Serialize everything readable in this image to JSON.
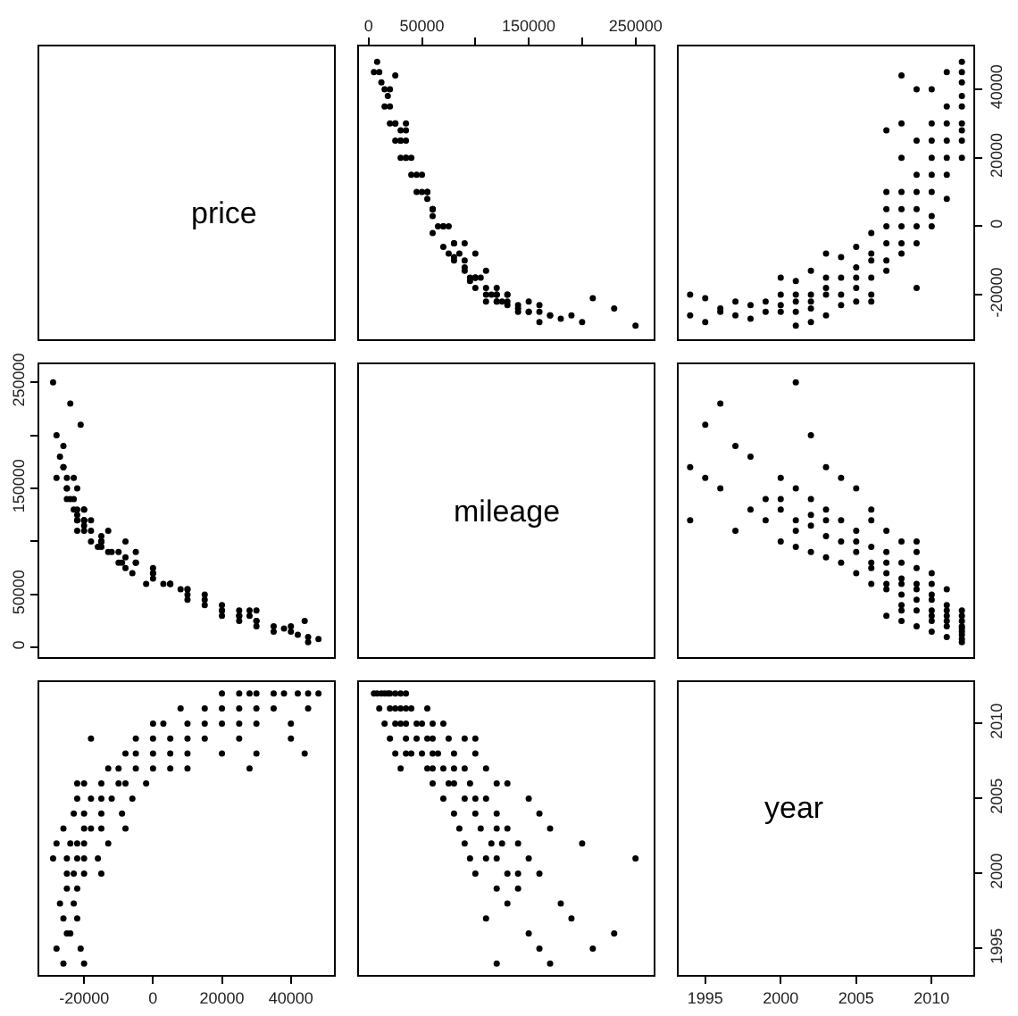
{
  "chart_data": [
    {
      "type": "other",
      "title": "price"
    },
    {
      "type": "scatter",
      "color": "#000000",
      "marker": "circle",
      "tick_labels": "x",
      "xlim": [
        -9000,
        267000
      ],
      "ylim": [
        -33000,
        52500
      ],
      "xticks": [
        0,
        50000,
        {
          "value": 100000,
          "label": null
        },
        150000,
        {
          "value": 200000,
          "label": null
        },
        250000
      ],
      "x": [
        8000,
        12000,
        15000,
        20000,
        25000,
        30000,
        5000,
        18000,
        35000,
        10000,
        20000,
        30000,
        40000,
        55000,
        35000,
        25000,
        15000,
        25000,
        35000,
        45000,
        60000,
        50000,
        30000,
        70000,
        20000,
        35000,
        45000,
        60000,
        75000,
        90000,
        55000,
        100000,
        25000,
        40000,
        50000,
        65000,
        80000,
        100000,
        60000,
        35000,
        30000,
        55000,
        70000,
        80000,
        90000,
        110000,
        60000,
        60000,
        80000,
        95000,
        120000,
        75000,
        130000,
        70000,
        90000,
        110000,
        150000,
        100000,
        80000,
        100000,
        120000,
        160000,
        85000,
        105000,
        130000,
        170000,
        120000,
        90000,
        115000,
        140000,
        200000,
        125000,
        95000,
        120000,
        150000,
        250000,
        110000,
        100000,
        130000,
        160000,
        140000,
        120000,
        140000,
        130000,
        180000,
        110000,
        190000,
        150000,
        230000,
        210000,
        160000,
        120000,
        170000
      ],
      "values": [
        48000,
        42000,
        35000,
        30000,
        25000,
        20000,
        45000,
        38000,
        28000,
        45000,
        35000,
        25000,
        15000,
        8000,
        20000,
        30000,
        40000,
        30000,
        20000,
        10000,
        3000,
        15000,
        25000,
        0,
        40000,
        25000,
        15000,
        5000,
        0,
        -5000,
        10000,
        -18000,
        44000,
        20000,
        10000,
        0,
        -5000,
        -8000,
        5000,
        30000,
        28000,
        10000,
        0,
        -5000,
        -10000,
        -13000,
        5000,
        -2000,
        -10000,
        -15000,
        -20000,
        -8000,
        -22000,
        -6000,
        -12000,
        -18000,
        -22000,
        -15000,
        -9000,
        -15000,
        -20000,
        -23000,
        -8000,
        -15000,
        -20000,
        -26000,
        -18000,
        -13000,
        -20000,
        -24000,
        -28000,
        -22000,
        -16000,
        -22000,
        -25000,
        -29000,
        -20000,
        -15000,
        -20000,
        -25000,
        -23000,
        -22000,
        -25000,
        -23000,
        -27000,
        -22000,
        -26000,
        -25000,
        -24000,
        -21000,
        -28000,
        -20000,
        -26000
      ]
    },
    {
      "type": "scatter",
      "color": "#000000",
      "marker": "circle",
      "tick_labels": "y",
      "xlim": [
        1993.24,
        2012.76
      ],
      "ylim": [
        -33000,
        52500
      ],
      "yticks": [
        -20000,
        0,
        20000,
        40000
      ],
      "x": [
        2012,
        2012,
        2012,
        2012,
        2012,
        2012,
        2012,
        2012,
        2012,
        2011,
        2011,
        2011,
        2011,
        2011,
        2011,
        2011,
        2010,
        2010,
        2010,
        2010,
        2010,
        2010,
        2010,
        2010,
        2009,
        2009,
        2009,
        2009,
        2009,
        2009,
        2009,
        2009,
        2008,
        2008,
        2008,
        2008,
        2008,
        2008,
        2008,
        2008,
        2007,
        2007,
        2007,
        2007,
        2007,
        2007,
        2007,
        2006,
        2006,
        2006,
        2006,
        2006,
        2006,
        2005,
        2005,
        2005,
        2005,
        2005,
        2004,
        2004,
        2004,
        2004,
        2003,
        2003,
        2003,
        2003,
        2003,
        2002,
        2002,
        2002,
        2002,
        2002,
        2001,
        2001,
        2001,
        2001,
        2001,
        2000,
        2000,
        2000,
        2000,
        1999,
        1999,
        1998,
        1998,
        1997,
        1997,
        1996,
        1996,
        1995,
        1995,
        1994,
        1994
      ],
      "values": [
        48000,
        42000,
        35000,
        30000,
        25000,
        20000,
        45000,
        38000,
        28000,
        45000,
        35000,
        25000,
        15000,
        8000,
        20000,
        30000,
        40000,
        30000,
        20000,
        10000,
        3000,
        15000,
        25000,
        0,
        40000,
        25000,
        15000,
        5000,
        0,
        -5000,
        10000,
        -18000,
        44000,
        20000,
        10000,
        0,
        -5000,
        -8000,
        5000,
        30000,
        28000,
        10000,
        0,
        -5000,
        -10000,
        -13000,
        5000,
        -2000,
        -10000,
        -15000,
        -20000,
        -8000,
        -22000,
        -6000,
        -12000,
        -18000,
        -22000,
        -15000,
        -9000,
        -15000,
        -20000,
        -23000,
        -8000,
        -15000,
        -20000,
        -26000,
        -18000,
        -13000,
        -20000,
        -24000,
        -28000,
        -22000,
        -16000,
        -22000,
        -25000,
        -29000,
        -20000,
        -15000,
        -20000,
        -25000,
        -23000,
        -22000,
        -25000,
        -23000,
        -27000,
        -22000,
        -26000,
        -25000,
        -24000,
        -21000,
        -28000,
        -20000,
        -26000
      ]
    },
    {
      "type": "scatter",
      "color": "#000000",
      "marker": "circle",
      "tick_labels": "y",
      "xlim": [
        -33000,
        52500
      ],
      "ylim": [
        -9000,
        267000
      ],
      "yticks": [
        0,
        50000,
        {
          "value": 100000,
          "label": null
        },
        150000,
        {
          "value": 200000,
          "label": null
        },
        250000
      ],
      "x": [
        48000,
        42000,
        35000,
        30000,
        25000,
        20000,
        45000,
        38000,
        28000,
        45000,
        35000,
        25000,
        15000,
        8000,
        20000,
        30000,
        40000,
        30000,
        20000,
        10000,
        3000,
        15000,
        25000,
        0,
        40000,
        25000,
        15000,
        5000,
        0,
        -5000,
        10000,
        -18000,
        44000,
        20000,
        10000,
        0,
        -5000,
        -8000,
        5000,
        30000,
        28000,
        10000,
        0,
        -5000,
        -10000,
        -13000,
        5000,
        -2000,
        -10000,
        -15000,
        -20000,
        -8000,
        -22000,
        -6000,
        -12000,
        -18000,
        -22000,
        -15000,
        -9000,
        -15000,
        -20000,
        -23000,
        -8000,
        -15000,
        -20000,
        -26000,
        -18000,
        -13000,
        -20000,
        -24000,
        -28000,
        -22000,
        -16000,
        -22000,
        -25000,
        -29000,
        -20000,
        -15000,
        -20000,
        -25000,
        -23000,
        -22000,
        -25000,
        -23000,
        -27000,
        -22000,
        -26000,
        -25000,
        -24000,
        -21000,
        -28000,
        -20000,
        -26000
      ],
      "values": [
        8000,
        12000,
        15000,
        20000,
        25000,
        30000,
        5000,
        18000,
        35000,
        10000,
        20000,
        30000,
        40000,
        55000,
        35000,
        25000,
        15000,
        25000,
        35000,
        45000,
        60000,
        50000,
        30000,
        70000,
        20000,
        35000,
        45000,
        60000,
        75000,
        90000,
        55000,
        100000,
        25000,
        40000,
        50000,
        65000,
        80000,
        100000,
        60000,
        35000,
        30000,
        55000,
        70000,
        80000,
        90000,
        110000,
        60000,
        60000,
        80000,
        95000,
        120000,
        75000,
        130000,
        70000,
        90000,
        110000,
        150000,
        100000,
        80000,
        100000,
        120000,
        160000,
        85000,
        105000,
        130000,
        170000,
        120000,
        90000,
        115000,
        140000,
        200000,
        125000,
        95000,
        120000,
        150000,
        250000,
        110000,
        100000,
        130000,
        160000,
        140000,
        120000,
        140000,
        130000,
        180000,
        110000,
        190000,
        150000,
        230000,
        210000,
        160000,
        120000,
        170000
      ]
    },
    {
      "type": "other",
      "title": "mileage"
    },
    {
      "type": "scatter",
      "color": "#000000",
      "marker": "circle",
      "tick_labels": false,
      "xlim": [
        1993.24,
        2012.76
      ],
      "ylim": [
        -9000,
        267000
      ],
      "x": [
        2012,
        2012,
        2012,
        2012,
        2012,
        2012,
        2012,
        2012,
        2012,
        2011,
        2011,
        2011,
        2011,
        2011,
        2011,
        2011,
        2010,
        2010,
        2010,
        2010,
        2010,
        2010,
        2010,
        2010,
        2009,
        2009,
        2009,
        2009,
        2009,
        2009,
        2009,
        2009,
        2008,
        2008,
        2008,
        2008,
        2008,
        2008,
        2008,
        2008,
        2007,
        2007,
        2007,
        2007,
        2007,
        2007,
        2007,
        2006,
        2006,
        2006,
        2006,
        2006,
        2006,
        2005,
        2005,
        2005,
        2005,
        2005,
        2004,
        2004,
        2004,
        2004,
        2003,
        2003,
        2003,
        2003,
        2003,
        2002,
        2002,
        2002,
        2002,
        2002,
        2001,
        2001,
        2001,
        2001,
        2001,
        2000,
        2000,
        2000,
        2000,
        1999,
        1999,
        1998,
        1998,
        1997,
        1997,
        1996,
        1996,
        1995,
        1995,
        1994,
        1994
      ],
      "values": [
        8000,
        12000,
        15000,
        20000,
        25000,
        30000,
        5000,
        18000,
        35000,
        10000,
        20000,
        30000,
        40000,
        55000,
        35000,
        25000,
        15000,
        25000,
        35000,
        45000,
        60000,
        50000,
        30000,
        70000,
        20000,
        35000,
        45000,
        60000,
        75000,
        90000,
        55000,
        100000,
        25000,
        40000,
        50000,
        65000,
        80000,
        100000,
        60000,
        35000,
        30000,
        55000,
        70000,
        80000,
        90000,
        110000,
        60000,
        60000,
        80000,
        95000,
        120000,
        75000,
        130000,
        70000,
        90000,
        110000,
        150000,
        100000,
        80000,
        100000,
        120000,
        160000,
        85000,
        105000,
        130000,
        170000,
        120000,
        90000,
        115000,
        140000,
        200000,
        125000,
        95000,
        120000,
        150000,
        250000,
        110000,
        100000,
        130000,
        160000,
        140000,
        120000,
        140000,
        130000,
        180000,
        110000,
        190000,
        150000,
        230000,
        210000,
        160000,
        120000,
        170000
      ]
    },
    {
      "type": "scatter",
      "color": "#000000",
      "marker": "circle",
      "tick_labels": "x",
      "xlim": [
        -33000,
        52500
      ],
      "ylim": [
        1993.24,
        2012.76
      ],
      "xticks": [
        -20000,
        0,
        20000,
        40000
      ],
      "x": [
        48000,
        42000,
        35000,
        30000,
        25000,
        20000,
        45000,
        38000,
        28000,
        45000,
        35000,
        25000,
        15000,
        8000,
        20000,
        30000,
        40000,
        30000,
        20000,
        10000,
        3000,
        15000,
        25000,
        0,
        40000,
        25000,
        15000,
        5000,
        0,
        -5000,
        10000,
        -18000,
        44000,
        20000,
        10000,
        0,
        -5000,
        -8000,
        5000,
        30000,
        28000,
        10000,
        0,
        -5000,
        -10000,
        -13000,
        5000,
        -2000,
        -10000,
        -15000,
        -20000,
        -8000,
        -22000,
        -6000,
        -12000,
        -18000,
        -22000,
        -15000,
        -9000,
        -15000,
        -20000,
        -23000,
        -8000,
        -15000,
        -20000,
        -26000,
        -18000,
        -13000,
        -20000,
        -24000,
        -28000,
        -22000,
        -16000,
        -22000,
        -25000,
        -29000,
        -20000,
        -15000,
        -20000,
        -25000,
        -23000,
        -22000,
        -25000,
        -23000,
        -27000,
        -22000,
        -26000,
        -25000,
        -24000,
        -21000,
        -28000,
        -20000,
        -26000
      ],
      "values": [
        2012,
        2012,
        2012,
        2012,
        2012,
        2012,
        2012,
        2012,
        2012,
        2011,
        2011,
        2011,
        2011,
        2011,
        2011,
        2011,
        2010,
        2010,
        2010,
        2010,
        2010,
        2010,
        2010,
        2010,
        2009,
        2009,
        2009,
        2009,
        2009,
        2009,
        2009,
        2009,
        2008,
        2008,
        2008,
        2008,
        2008,
        2008,
        2008,
        2008,
        2007,
        2007,
        2007,
        2007,
        2007,
        2007,
        2007,
        2006,
        2006,
        2006,
        2006,
        2006,
        2006,
        2005,
        2005,
        2005,
        2005,
        2005,
        2004,
        2004,
        2004,
        2004,
        2003,
        2003,
        2003,
        2003,
        2003,
        2002,
        2002,
        2002,
        2002,
        2002,
        2001,
        2001,
        2001,
        2001,
        2001,
        2000,
        2000,
        2000,
        2000,
        1999,
        1999,
        1998,
        1998,
        1997,
        1997,
        1996,
        1996,
        1995,
        1995,
        1994,
        1994
      ]
    },
    {
      "type": "scatter",
      "color": "#000000",
      "marker": "circle",
      "tick_labels": false,
      "xlim": [
        -9000,
        267000
      ],
      "ylim": [
        1993.24,
        2012.76
      ],
      "x": [
        8000,
        12000,
        15000,
        20000,
        25000,
        30000,
        5000,
        18000,
        35000,
        10000,
        20000,
        30000,
        40000,
        55000,
        35000,
        25000,
        15000,
        25000,
        35000,
        45000,
        60000,
        50000,
        30000,
        70000,
        20000,
        35000,
        45000,
        60000,
        75000,
        90000,
        55000,
        100000,
        25000,
        40000,
        50000,
        65000,
        80000,
        100000,
        60000,
        35000,
        30000,
        55000,
        70000,
        80000,
        90000,
        110000,
        60000,
        60000,
        80000,
        95000,
        120000,
        75000,
        130000,
        70000,
        90000,
        110000,
        150000,
        100000,
        80000,
        100000,
        120000,
        160000,
        85000,
        105000,
        130000,
        170000,
        120000,
        90000,
        115000,
        140000,
        200000,
        125000,
        95000,
        120000,
        150000,
        250000,
        110000,
        100000,
        130000,
        160000,
        140000,
        120000,
        140000,
        130000,
        180000,
        110000,
        190000,
        150000,
        230000,
        210000,
        160000,
        120000,
        170000
      ],
      "values": [
        2012,
        2012,
        2012,
        2012,
        2012,
        2012,
        2012,
        2012,
        2012,
        2011,
        2011,
        2011,
        2011,
        2011,
        2011,
        2011,
        2010,
        2010,
        2010,
        2010,
        2010,
        2010,
        2010,
        2010,
        2009,
        2009,
        2009,
        2009,
        2009,
        2009,
        2009,
        2009,
        2008,
        2008,
        2008,
        2008,
        2008,
        2008,
        2008,
        2008,
        2007,
        2007,
        2007,
        2007,
        2007,
        2007,
        2007,
        2006,
        2006,
        2006,
        2006,
        2006,
        2006,
        2005,
        2005,
        2005,
        2005,
        2005,
        2004,
        2004,
        2004,
        2004,
        2003,
        2003,
        2003,
        2003,
        2003,
        2002,
        2002,
        2002,
        2002,
        2002,
        2001,
        2001,
        2001,
        2001,
        2001,
        2000,
        2000,
        2000,
        2000,
        1999,
        1999,
        1998,
        1998,
        1997,
        1997,
        1996,
        1996,
        1995,
        1995,
        1994,
        1994
      ]
    },
    {
      "type": "scatter",
      "title": "year",
      "xlim": [
        1993.24,
        2012.76
      ],
      "ylim": [
        1993.24,
        2012.76
      ],
      "xticks": [
        1995,
        2000,
        2005,
        2010
      ],
      "yticks": [
        1995,
        2000,
        2005,
        2010
      ]
    }
  ]
}
